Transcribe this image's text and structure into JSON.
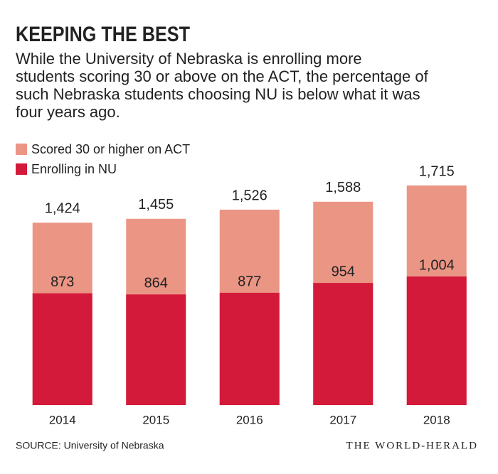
{
  "chart_data": {
    "type": "bar",
    "title": "KEEPING THE BEST",
    "subtitle": [
      "While the University of Nebraska is enrolling more",
      "students scoring 30 or above on the ACT, the percentage of",
      "such Nebraska students choosing NU is below what it was",
      "four years ago."
    ],
    "categories": [
      "2014",
      "2015",
      "2016",
      "2017",
      "2018"
    ],
    "series": [
      {
        "name": "Scored 30 or higher on ACT",
        "color": "#eb9585",
        "values": [
          1424,
          1455,
          1526,
          1588,
          1715
        ],
        "value_labels": [
          "1,424",
          "1,455",
          "1,526",
          "1,588",
          "1,715"
        ]
      },
      {
        "name": "Enrolling in NU",
        "color": "#d41a3a",
        "values": [
          873,
          864,
          877,
          954,
          1004
        ],
        "value_labels": [
          "873",
          "864",
          "877",
          "954",
          "1,004"
        ]
      }
    ],
    "source": "SOURCE: University of Nebraska",
    "credit": "THE WORLD-HERALD"
  }
}
